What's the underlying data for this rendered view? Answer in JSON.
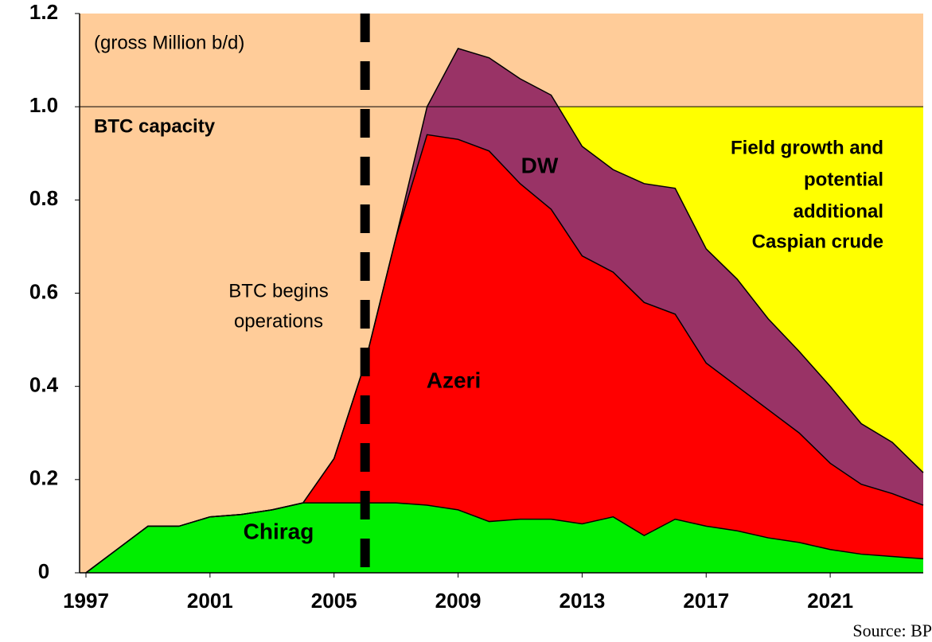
{
  "chart_data": {
    "type": "stacked_area",
    "x": [
      1997,
      1998,
      1999,
      2000,
      2001,
      2002,
      2003,
      2004,
      2005,
      2006,
      2007,
      2008,
      2009,
      2010,
      2011,
      2012,
      2013,
      2014,
      2015,
      2016,
      2017,
      2018,
      2019,
      2020,
      2021,
      2022,
      2023,
      2024
    ],
    "series": [
      {
        "name": "Chirag",
        "color": "#00ee00",
        "values": [
          0,
          0.05,
          0.1,
          0.1,
          0.12,
          0.125,
          0.135,
          0.15,
          0.15,
          0.15,
          0.15,
          0.145,
          0.135,
          0.11,
          0.115,
          0.115,
          0.105,
          0.12,
          0.08,
          0.115,
          0.1,
          0.09,
          0.075,
          0.065,
          0.05,
          0.04,
          0.035,
          0.03
        ]
      },
      {
        "name": "Azeri",
        "color": "#ff0000",
        "values": [
          0,
          0,
          0,
          0,
          0,
          0,
          0,
          0,
          0.095,
          0.3,
          0.57,
          0.795,
          0.795,
          0.795,
          0.72,
          0.665,
          0.575,
          0.525,
          0.5,
          0.44,
          0.35,
          0.31,
          0.275,
          0.235,
          0.185,
          0.15,
          0.135,
          0.115
        ]
      },
      {
        "name": "DW",
        "color": "#993366",
        "values": [
          0,
          0,
          0,
          0,
          0,
          0,
          0,
          0,
          0,
          0,
          0,
          0.06,
          0.195,
          0.2,
          0.225,
          0.245,
          0.235,
          0.22,
          0.255,
          0.27,
          0.245,
          0.23,
          0.195,
          0.175,
          0.165,
          0.13,
          0.11,
          0.07
        ]
      }
    ],
    "xlim": [
      1997,
      2024
    ],
    "ylim": [
      0,
      1.2
    ],
    "xticks": [
      1997,
      2001,
      2005,
      2009,
      2013,
      2017,
      2021
    ],
    "yticks": [
      0,
      0.2,
      0.4,
      0.6,
      0.8,
      {
        "value": 1,
        "label": "1.0"
      },
      1.2
    ],
    "capacity": 1,
    "btc_start": 2006,
    "background_color": "#ffcc99",
    "growth_color": "#ffff00",
    "growth_from": 2009,
    "annotations": {
      "unit": "(gross Million b/d)",
      "capacity": "BTC capacity",
      "btc": [
        "BTC begins",
        "operations"
      ],
      "growth": [
        "Field growth and",
        "potential",
        "additional",
        "Caspian crude"
      ]
    },
    "source": "Source: BP"
  }
}
